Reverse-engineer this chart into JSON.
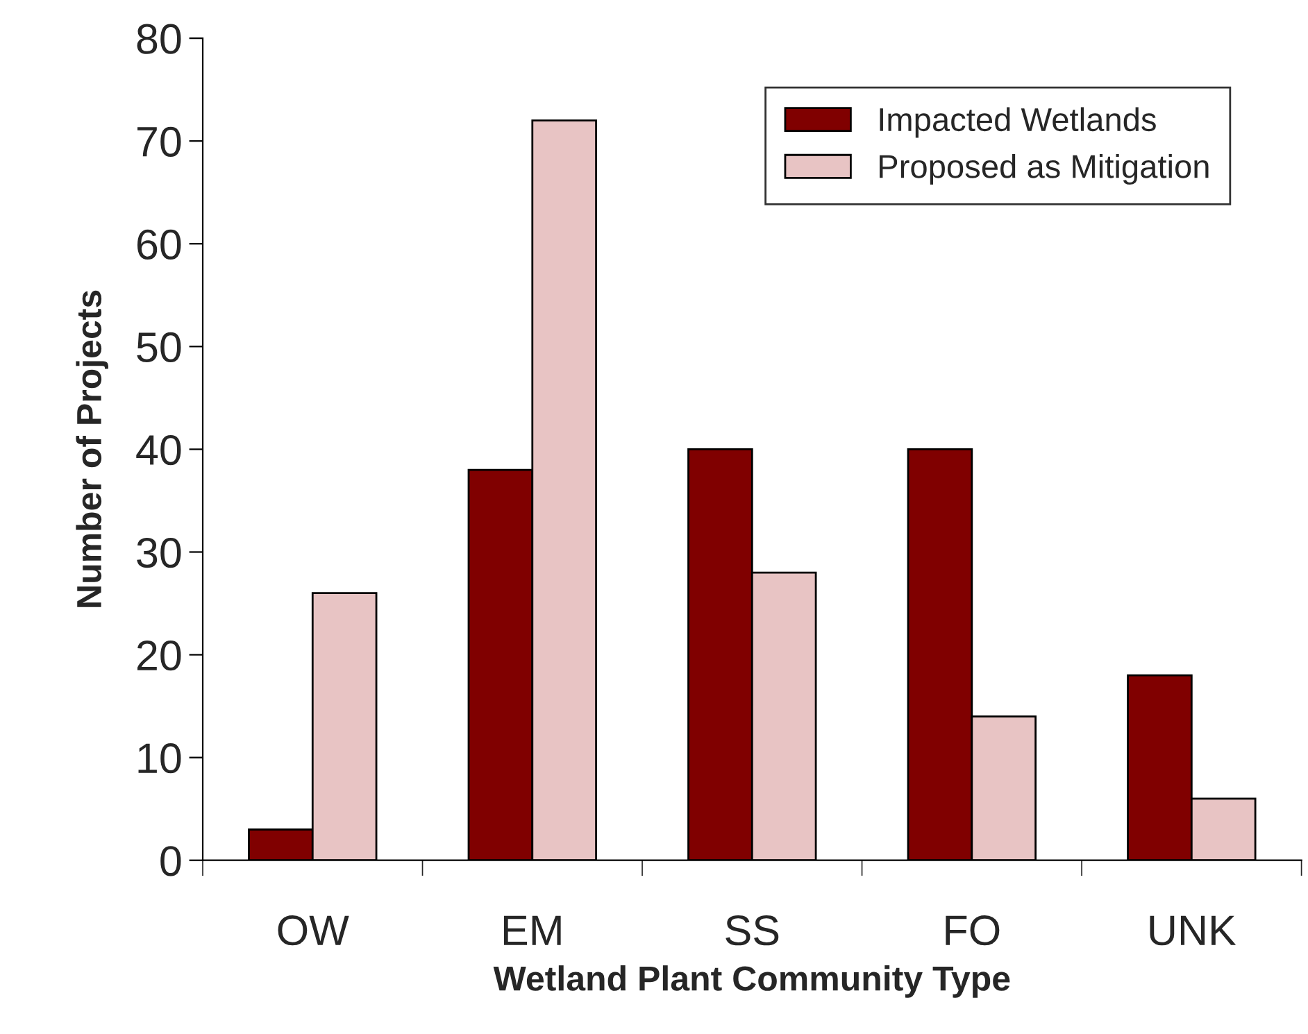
{
  "chart_data": {
    "type": "bar",
    "xlabel": "Wetland Plant Community Type",
    "ylabel": "Number of Projects",
    "categories": [
      "OW",
      "EM",
      "SS",
      "FO",
      "UNK"
    ],
    "series": [
      {
        "name": "Impacted Wetlands",
        "color": "#800000",
        "values": [
          3,
          38,
          40,
          40,
          18
        ]
      },
      {
        "name": "Proposed as Mitigation",
        "color": "#e8c4c4",
        "values": [
          26,
          72,
          28,
          14,
          6
        ]
      }
    ],
    "ylim": [
      0,
      80
    ],
    "yticks": [
      0,
      10,
      20,
      30,
      40,
      50,
      60,
      70,
      80
    ],
    "grid": false,
    "legend": "top right"
  }
}
